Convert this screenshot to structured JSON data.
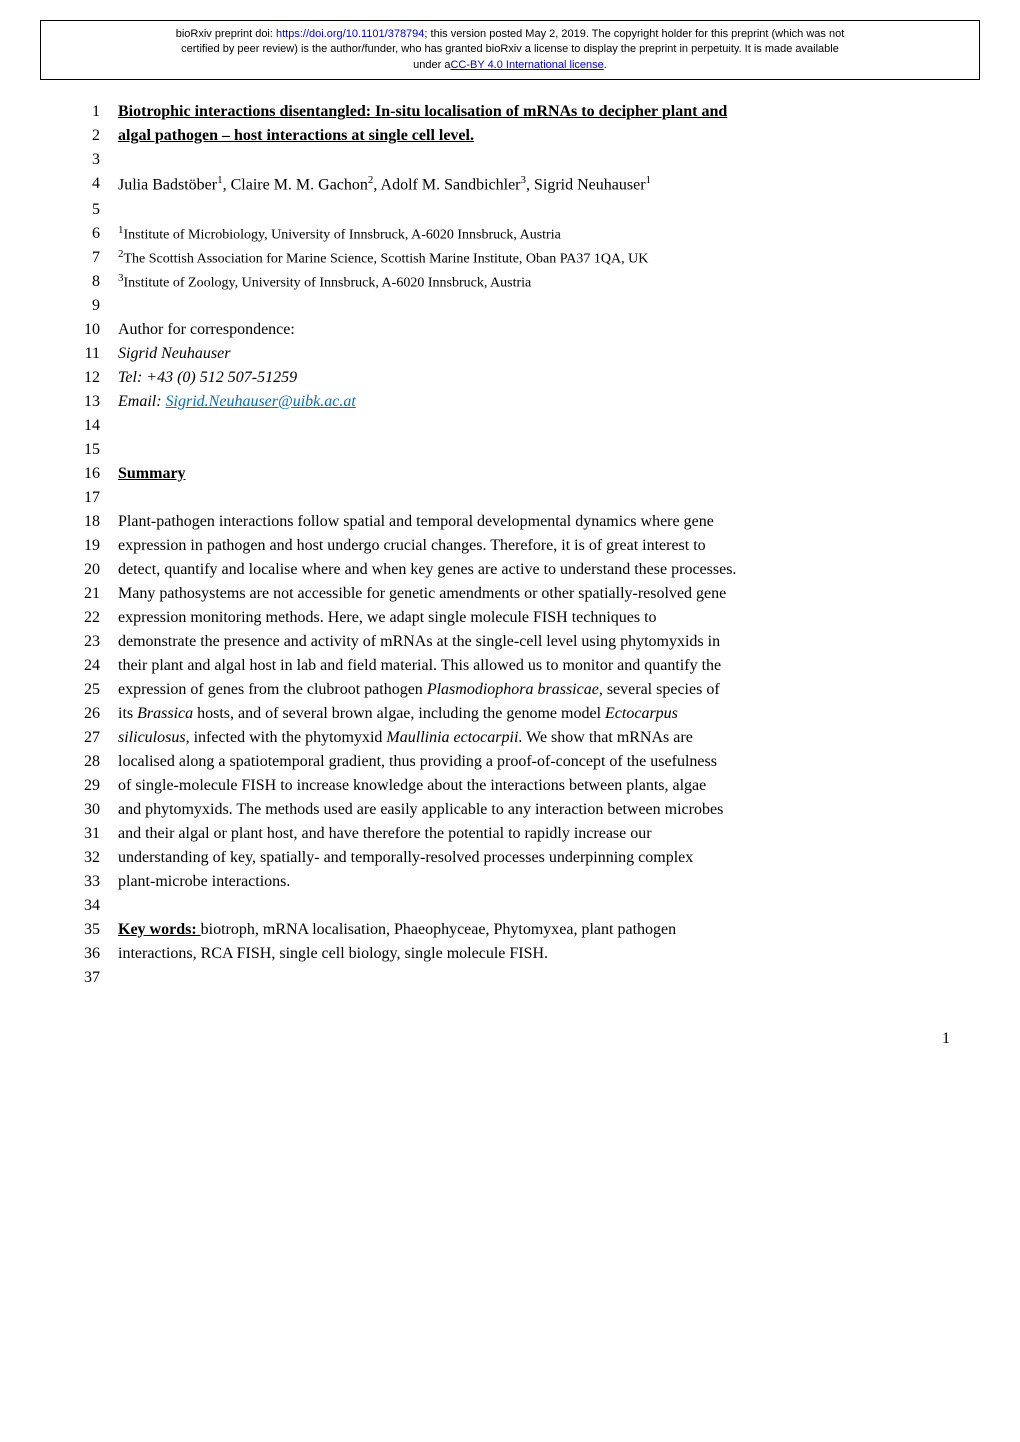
{
  "header": {
    "line1_pre": "bioRxiv preprint doi: ",
    "doi_url": "https://doi.org/10.1101/378794",
    "line1_mid": "; this version posted May 2, 2019. The copyright holder for this preprint (which was not",
    "line2": "certified by peer review) is the author/funder, who has granted bioRxiv a license to display the preprint in perpetuity. It is made available",
    "line3_pre": "under a",
    "license_text": "CC-BY 4.0 International license",
    "line3_post": "."
  },
  "title_line1": "Biotrophic interactions disentangled: In-situ localisation of mRNAs to decipher plant and",
  "title_line2": "algal pathogen – host interactions at single cell level.",
  "authors": {
    "a1": "Julia Badstöber",
    "s1": "1",
    "a2": ", Claire M. M. Gachon",
    "s2": "2",
    "a3": ", Adolf M. Sandbichler",
    "s3": "3",
    "a4": ", Sigrid Neuhauser",
    "s4": "1"
  },
  "affiliations": {
    "af1_sup": "1",
    "af1": "Institute of Microbiology, University of Innsbruck, A-6020 Innsbruck, Austria",
    "af2_sup": "2",
    "af2": "The Scottish Association for Marine Science, Scottish Marine Institute, Oban PA37 1QA, UK",
    "af3_sup": "3",
    "af3": "Institute of Zoology, University of Innsbruck, A-6020 Innsbruck, Austria"
  },
  "correspondence": {
    "label": "Author for correspondence:",
    "name": "Sigrid Neuhauser",
    "tel": "Tel: +43 (0) 512 507-51259",
    "email_label": "Email: ",
    "email": "Sigrid.Neuhauser@uibk.ac.at"
  },
  "summary_heading": "Summary",
  "summary_lines": [
    "Plant-pathogen interactions follow spatial and temporal developmental dynamics where gene",
    "expression in pathogen and host undergo crucial changes. Therefore, it is of great interest to",
    "detect, quantify and localise where and when key genes are active to understand these processes.",
    "Many pathosystems are not accessible for genetic amendments or other spatially-resolved gene",
    "expression monitoring methods. Here, we adapt single molecule FISH techniques to",
    "demonstrate the presence and activity of mRNAs at the single-cell level using phytomyxids in",
    "their plant and algal host in lab and field material. This allowed us to monitor and quantify the",
    "expression of genes from the clubroot pathogen Plasmodiophora brassicae, several species of",
    "its Brassica hosts, and of several brown algae, including the genome model Ectocarpus",
    "siliculosus, infected with the phytomyxid Maullinia ectocarpii. We show that mRNAs are",
    "localised along a spatiotemporal gradient, thus providing a proof-of-concept of the usefulness",
    "of single-molecule FISH to increase knowledge about the interactions between plants, algae",
    "and phytomyxids. The methods used are easily applicable to any interaction between microbes",
    "and their algal or plant host, and have therefore the potential to rapidly increase our",
    "understanding of key, spatially- and temporally-resolved processes underpinning complex",
    "plant-microbe interactions."
  ],
  "keywords": {
    "label": "Key words: ",
    "line1": "biotroph, mRNA localisation, Phaeophyceae, Phytomyxea, plant pathogen",
    "line2": "interactions, RCA FISH, single cell biology, single molecule FISH."
  },
  "line_numbers": [
    "1",
    "2",
    "3",
    "4",
    "5",
    "6",
    "7",
    "8",
    "9",
    "10",
    "11",
    "12",
    "13",
    "14",
    "15",
    "16",
    "17",
    "18",
    "19",
    "20",
    "21",
    "22",
    "23",
    "24",
    "25",
    "26",
    "27",
    "28",
    "29",
    "30",
    "31",
    "32",
    "33",
    "34",
    "35",
    "36",
    "37"
  ],
  "page_number": "1",
  "colors": {
    "link": "#0000ee",
    "email": "#0070c0",
    "text": "#000000",
    "bg": "#ffffff"
  }
}
